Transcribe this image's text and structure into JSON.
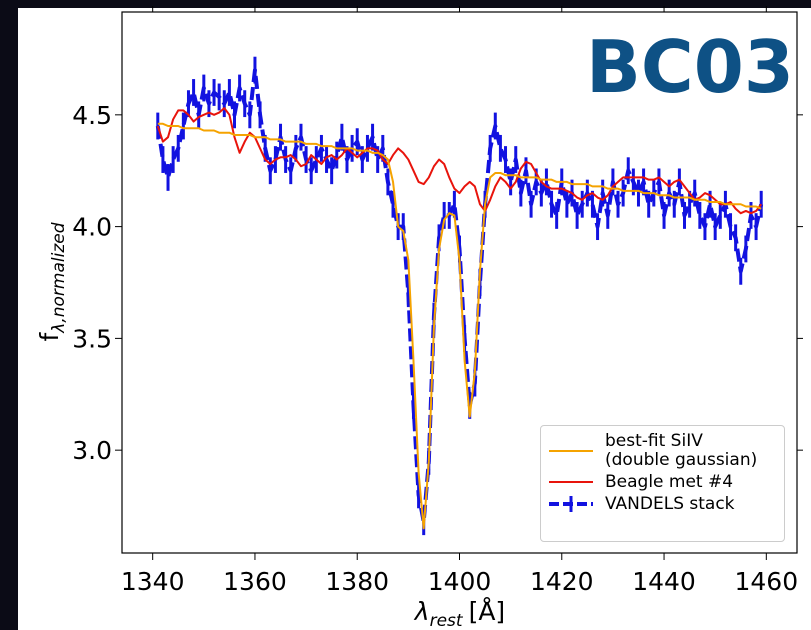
{
  "chart_data": {
    "type": "line",
    "annotation": "BC03",
    "xlabel": "λ",
    "xlabel_sub": "rest",
    "xlabel_unit": "[Å]",
    "ylabel": "f",
    "ylabel_sub": "λ,normalized",
    "xlim": [
      1334,
      1466
    ],
    "ylim": [
      2.54,
      4.96
    ],
    "xticks": [
      1340,
      1360,
      1380,
      1400,
      1420,
      1440,
      1460
    ],
    "yticks": [
      {
        "value": 3,
        "label": "3.0"
      },
      3.5,
      {
        "value": 4,
        "label": "4.0"
      },
      4.5
    ],
    "legend": "lower right",
    "x": [
      1341,
      1342,
      1343,
      1344,
      1345,
      1346,
      1347,
      1348,
      1349,
      1350,
      1351,
      1352,
      1353,
      1354,
      1355,
      1356,
      1357,
      1358,
      1359,
      1360,
      1361,
      1362,
      1363,
      1364,
      1365,
      1366,
      1367,
      1368,
      1369,
      1370,
      1371,
      1372,
      1373,
      1374,
      1375,
      1376,
      1377,
      1378,
      1379,
      1380,
      1381,
      1382,
      1383,
      1384,
      1385,
      1386,
      1387,
      1388,
      1389,
      1390,
      1391,
      1392,
      1393,
      1394,
      1395,
      1396,
      1397,
      1398,
      1399,
      1400,
      1401,
      1402,
      1403,
      1404,
      1405,
      1406,
      1407,
      1408,
      1409,
      1410,
      1411,
      1412,
      1413,
      1414,
      1415,
      1416,
      1417,
      1418,
      1419,
      1420,
      1421,
      1422,
      1423,
      1424,
      1425,
      1426,
      1427,
      1428,
      1429,
      1430,
      1431,
      1432,
      1433,
      1434,
      1435,
      1436,
      1437,
      1438,
      1439,
      1440,
      1441,
      1442,
      1443,
      1444,
      1445,
      1446,
      1447,
      1448,
      1449,
      1450,
      1451,
      1452,
      1453,
      1454,
      1455,
      1456,
      1457,
      1458,
      1459
    ],
    "series": [
      {
        "name": "best-fit SiIV\n(double gaussian)",
        "color": "#f5a300",
        "values": [
          4.46,
          4.46,
          4.45,
          4.45,
          4.45,
          4.44,
          4.44,
          4.44,
          4.44,
          4.43,
          4.43,
          4.43,
          4.42,
          4.42,
          4.42,
          4.41,
          4.41,
          4.41,
          4.41,
          4.4,
          4.4,
          4.4,
          4.39,
          4.39,
          4.39,
          4.38,
          4.38,
          4.38,
          4.38,
          4.37,
          4.37,
          4.37,
          4.36,
          4.36,
          4.36,
          4.35,
          4.35,
          4.35,
          4.35,
          4.34,
          4.34,
          4.34,
          4.33,
          4.33,
          4.32,
          4.3,
          4.2,
          4.0,
          3.98,
          3.85,
          3.4,
          2.9,
          2.65,
          2.95,
          3.55,
          3.9,
          4.03,
          4.06,
          4.05,
          3.85,
          3.4,
          3.15,
          3.35,
          3.8,
          4.1,
          4.22,
          4.24,
          4.24,
          4.23,
          4.23,
          4.23,
          4.22,
          4.22,
          4.22,
          4.22,
          4.21,
          4.21,
          4.21,
          4.2,
          4.2,
          4.2,
          4.19,
          4.19,
          4.19,
          4.19,
          4.18,
          4.18,
          4.18,
          4.17,
          4.17,
          4.17,
          4.16,
          4.16,
          4.16,
          4.16,
          4.15,
          4.15,
          4.15,
          4.14,
          4.14,
          4.14,
          4.13,
          4.13,
          4.13,
          4.13,
          4.12,
          4.12,
          4.12,
          4.11,
          4.11,
          4.11,
          4.1,
          4.1,
          4.1,
          4.1,
          4.09,
          4.09,
          4.09,
          4.08
        ]
      },
      {
        "name": "Beagle met #4",
        "color": "#e8140c",
        "values": [
          4.45,
          4.38,
          4.4,
          4.48,
          4.52,
          4.52,
          4.5,
          4.47,
          4.49,
          4.5,
          4.51,
          4.5,
          4.51,
          4.53,
          4.5,
          4.4,
          4.33,
          4.38,
          4.42,
          4.4,
          4.35,
          4.3,
          4.28,
          4.3,
          4.31,
          4.31,
          4.32,
          4.3,
          4.27,
          4.28,
          4.32,
          4.3,
          4.28,
          4.31,
          4.32,
          4.3,
          4.32,
          4.35,
          4.33,
          4.31,
          4.33,
          4.35,
          4.35,
          4.34,
          4.3,
          4.28,
          4.32,
          4.35,
          4.33,
          4.3,
          4.25,
          4.2,
          4.19,
          4.22,
          4.27,
          4.3,
          4.28,
          4.22,
          4.17,
          4.15,
          4.18,
          4.2,
          4.18,
          4.1,
          4.07,
          4.12,
          4.18,
          4.22,
          4.2,
          4.17,
          4.2,
          4.26,
          4.29,
          4.28,
          4.24,
          4.2,
          4.18,
          4.17,
          4.17,
          4.17,
          4.16,
          4.15,
          4.13,
          4.12,
          4.14,
          4.15,
          4.13,
          4.12,
          4.14,
          4.18,
          4.2,
          4.22,
          4.22,
          4.22,
          4.22,
          4.22,
          4.21,
          4.21,
          4.22,
          4.2,
          4.18,
          4.2,
          4.21,
          4.18,
          4.15,
          4.12,
          4.13,
          4.15,
          4.14,
          4.12,
          4.1,
          4.1,
          4.11,
          4.08,
          4.06,
          4.07,
          4.06,
          4.07,
          4.1
        ]
      },
      {
        "name": "VANDELS stack",
        "color": "#1212e0",
        "values": [
          4.45,
          4.3,
          4.22,
          4.3,
          4.35,
          4.45,
          4.55,
          4.6,
          4.5,
          4.62,
          4.55,
          4.6,
          4.58,
          4.55,
          4.6,
          4.5,
          4.62,
          4.55,
          4.5,
          4.7,
          4.5,
          4.35,
          4.25,
          4.3,
          4.4,
          4.3,
          4.25,
          4.35,
          4.4,
          4.3,
          4.25,
          4.3,
          4.35,
          4.3,
          4.25,
          4.32,
          4.4,
          4.3,
          4.35,
          4.38,
          4.3,
          4.35,
          4.4,
          4.3,
          4.35,
          4.2,
          4.1,
          4.0,
          4.0,
          3.7,
          3.2,
          2.8,
          2.68,
          2.95,
          3.6,
          3.95,
          4.05,
          4.05,
          4.1,
          3.9,
          3.5,
          3.2,
          3.3,
          3.75,
          4.1,
          4.35,
          4.45,
          4.35,
          4.3,
          4.2,
          4.3,
          4.15,
          4.25,
          4.1,
          4.2,
          4.15,
          4.2,
          4.1,
          4.05,
          4.2,
          4.1,
          4.15,
          4.05,
          4.1,
          4.15,
          4.1,
          4.0,
          4.15,
          4.05,
          4.2,
          4.1,
          4.15,
          4.25,
          4.2,
          4.15,
          4.2,
          4.1,
          4.15,
          4.2,
          4.05,
          4.15,
          4.1,
          4.2,
          4.05,
          4.1,
          4.15,
          4.05,
          4.0,
          4.1,
          4.0,
          4.05,
          4.1,
          4.0,
          3.95,
          3.8,
          3.9,
          4.05,
          4.0,
          4.1
        ],
        "errors": [
          0.06,
          0.06,
          0.06,
          0.06,
          0.06,
          0.06,
          0.06,
          0.06,
          0.06,
          0.06,
          0.06,
          0.06,
          0.06,
          0.06,
          0.06,
          0.06,
          0.06,
          0.06,
          0.06,
          0.06,
          0.06,
          0.06,
          0.06,
          0.06,
          0.06,
          0.06,
          0.06,
          0.06,
          0.06,
          0.06,
          0.06,
          0.06,
          0.06,
          0.06,
          0.06,
          0.06,
          0.06,
          0.06,
          0.06,
          0.06,
          0.06,
          0.06,
          0.06,
          0.06,
          0.06,
          0.06,
          0.06,
          0.06,
          0.06,
          0.06,
          0.06,
          0.06,
          0.06,
          0.06,
          0.06,
          0.06,
          0.06,
          0.06,
          0.06,
          0.06,
          0.06,
          0.06,
          0.06,
          0.06,
          0.06,
          0.06,
          0.06,
          0.06,
          0.06,
          0.06,
          0.06,
          0.06,
          0.06,
          0.06,
          0.06,
          0.06,
          0.06,
          0.06,
          0.06,
          0.06,
          0.06,
          0.06,
          0.06,
          0.06,
          0.06,
          0.06,
          0.06,
          0.06,
          0.06,
          0.06,
          0.06,
          0.06,
          0.06,
          0.06,
          0.06,
          0.06,
          0.06,
          0.06,
          0.06,
          0.06,
          0.06,
          0.06,
          0.06,
          0.06,
          0.06,
          0.06,
          0.06,
          0.06,
          0.06,
          0.06,
          0.06,
          0.06,
          0.06,
          0.06,
          0.06,
          0.06,
          0.06,
          0.06,
          0.06
        ]
      }
    ]
  }
}
